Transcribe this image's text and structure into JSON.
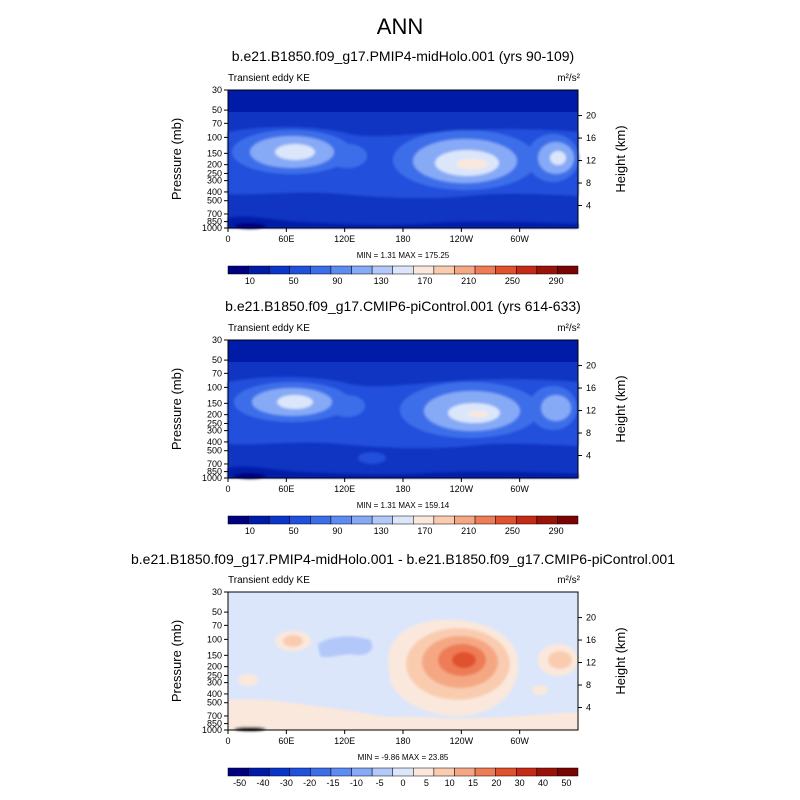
{
  "title": "ANN",
  "chart_data": [
    {
      "type": "heatmap",
      "title": "b.e21.B1850.f09_g17.PMIP4-midHolo.001 (yrs 90-109)",
      "variable_label": "Transient eddy KE",
      "units_label": "m²/s²",
      "ylabel": "Pressure (mb)",
      "ylabel_right": "Height (km)",
      "x_ticks": [
        "0",
        "60E",
        "120E",
        "180",
        "120W",
        "60W"
      ],
      "y_ticks": [
        "30",
        "50",
        "70",
        "100",
        "150",
        "200",
        "250",
        "300",
        "400",
        "500",
        "700",
        "850",
        "1000"
      ],
      "y_ticks_right": [
        "20",
        "16",
        "12",
        "8",
        "4"
      ],
      "stats_text": "MIN =   1.31   MAX = 175.25",
      "min": 1.31,
      "max": 175.25,
      "levels": [
        "10",
        "50",
        "90",
        "130",
        "170",
        "210",
        "250",
        "290"
      ],
      "colors": [
        "#00007f",
        "#001ba8",
        "#0b35c8",
        "#2050dc",
        "#3d6ee9",
        "#5c8cf2",
        "#86aaf6",
        "#b2c8f9",
        "#dbe6fb",
        "#fbe8dc",
        "#f9ccb0",
        "#f5a783",
        "#ee7c56",
        "#e0512e",
        "#c42a16",
        "#9b1208",
        "#7a0403"
      ],
      "features": [
        {
          "lon": 0,
          "p": 30,
          "value": 2
        },
        {
          "lon": 75,
          "p": 160,
          "value": 150
        },
        {
          "lon": 125,
          "p": 175,
          "value": 80
        },
        {
          "lon": 240,
          "p": 195,
          "value": 172
        },
        {
          "lon": 325,
          "p": 175,
          "value": 150
        }
      ]
    },
    {
      "type": "heatmap",
      "title": "b.e21.B1850.f09_g17.CMIP6-piControl.001 (yrs 614-633)",
      "variable_label": "Transient eddy KE",
      "units_label": "m²/s²",
      "ylabel": "Pressure (mb)",
      "ylabel_right": "Height (km)",
      "x_ticks": [
        "0",
        "60E",
        "120E",
        "180",
        "120W",
        "60W"
      ],
      "y_ticks": [
        "30",
        "50",
        "70",
        "100",
        "150",
        "200",
        "250",
        "300",
        "400",
        "500",
        "700",
        "850",
        "1000"
      ],
      "y_ticks_right": [
        "20",
        "16",
        "12",
        "8",
        "4"
      ],
      "stats_text": "MIN =   1.31   MAX = 159.14",
      "min": 1.31,
      "max": 159.14,
      "levels": [
        "10",
        "50",
        "90",
        "130",
        "170",
        "210",
        "250",
        "290"
      ],
      "colors": [
        "#00007f",
        "#001ba8",
        "#0b35c8",
        "#2050dc",
        "#3d6ee9",
        "#5c8cf2",
        "#86aaf6",
        "#b2c8f9",
        "#dbe6fb",
        "#fbe8dc",
        "#f9ccb0",
        "#f5a783",
        "#ee7c56",
        "#e0512e",
        "#c42a16",
        "#9b1208",
        "#7a0403"
      ],
      "features": [
        {
          "lon": 0,
          "p": 30,
          "value": 2
        },
        {
          "lon": 75,
          "p": 160,
          "value": 145
        },
        {
          "lon": 125,
          "p": 175,
          "value": 75
        },
        {
          "lon": 245,
          "p": 195,
          "value": 155
        },
        {
          "lon": 325,
          "p": 175,
          "value": 135
        }
      ]
    },
    {
      "type": "heatmap",
      "title": "b.e21.B1850.f09_g17.PMIP4-midHolo.001 - b.e21.B1850.f09_g17.CMIP6-piControl.001",
      "variable_label": "Transient eddy KE",
      "units_label": "m²/s²",
      "ylabel": "Pressure (mb)",
      "ylabel_right": "Height (km)",
      "x_ticks": [
        "0",
        "60E",
        "120E",
        "180",
        "120W",
        "60W"
      ],
      "y_ticks": [
        "30",
        "50",
        "70",
        "100",
        "150",
        "200",
        "250",
        "300",
        "400",
        "500",
        "700",
        "850",
        "1000"
      ],
      "y_ticks_right": [
        "20",
        "16",
        "12",
        "8",
        "4"
      ],
      "stats_text": "MIN =  -9.86   MAX =  23.85",
      "min": -9.86,
      "max": 23.85,
      "levels": [
        "-50",
        "-40",
        "-30",
        "-20",
        "-15",
        "-10",
        "-5",
        "0",
        "5",
        "10",
        "15",
        "20",
        "30",
        "40",
        "50"
      ],
      "colors": [
        "#00007f",
        "#001ba8",
        "#0b35c8",
        "#2050dc",
        "#3d6ee9",
        "#5c8cf2",
        "#86aaf6",
        "#b2c8f9",
        "#dbe6fb",
        "#fbe8dc",
        "#f9ccb0",
        "#f5a783",
        "#ee7c56",
        "#e0512e",
        "#c42a16",
        "#9b1208",
        "#7a0403"
      ],
      "features": [
        {
          "lon": 70,
          "p": 120,
          "value": 8
        },
        {
          "lon": 120,
          "p": 130,
          "value": -4
        },
        {
          "lon": 235,
          "p": 200,
          "value": 20
        },
        {
          "lon": 330,
          "p": 170,
          "value": 8
        },
        {
          "lon": 20,
          "p": 700,
          "value": 2
        }
      ]
    }
  ]
}
